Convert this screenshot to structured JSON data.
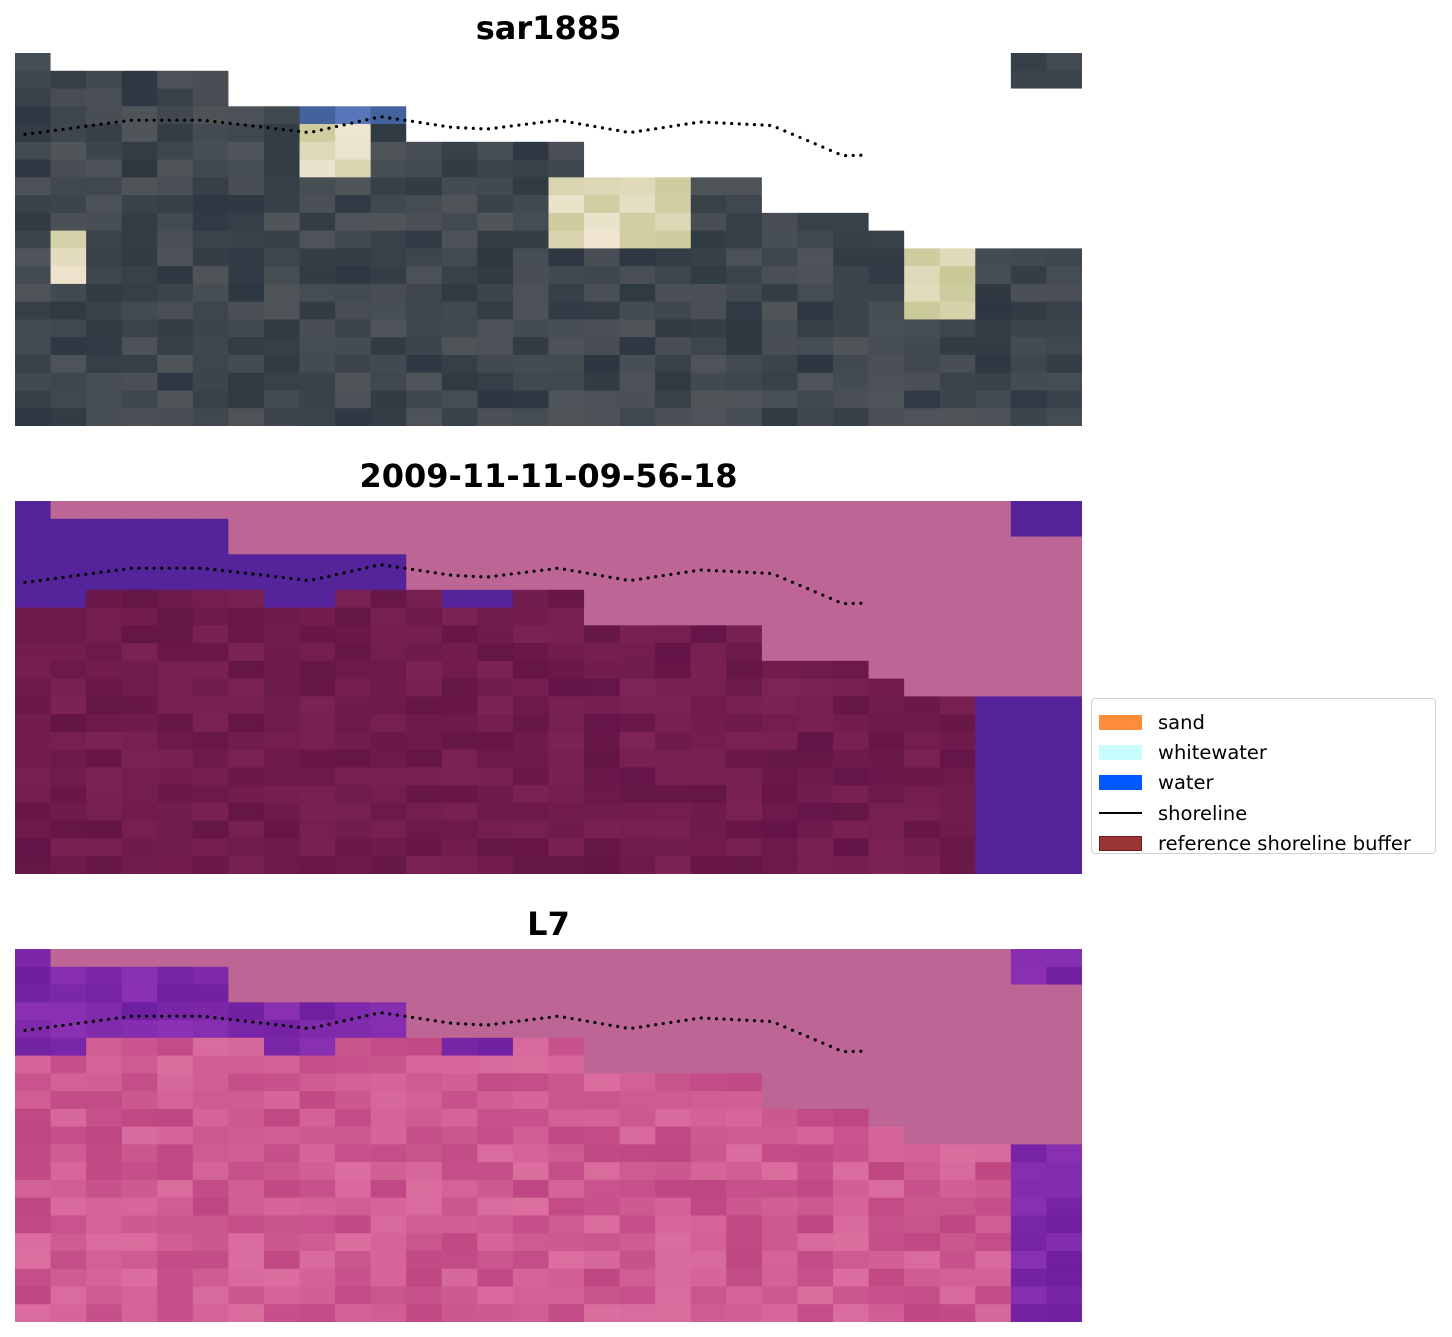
{
  "panels": [
    {
      "title": "sar1885",
      "style": "rgb"
    },
    {
      "title": "2009-11-11-09-56-18",
      "style": "classified"
    },
    {
      "title": "L7",
      "style": "index"
    }
  ],
  "legend": [
    {
      "label": "sand",
      "kind": "patch",
      "color": "#ff8c3a",
      "border": "#ff8c3a"
    },
    {
      "label": "whitewater",
      "kind": "patch",
      "color": "#c8fdfd",
      "border": "#c8fdfd"
    },
    {
      "label": "water",
      "kind": "patch",
      "color": "#0059ff",
      "border": "#0059ff"
    },
    {
      "label": "shoreline",
      "kind": "line",
      "color": "#000000"
    },
    {
      "label": "reference shoreline buffer",
      "kind": "patch",
      "color": "#9b3535",
      "border": "#6e1b1b"
    }
  ],
  "colors": {
    "no_data": "#bd6696",
    "shoreline_dots": "#000000"
  },
  "grid": {
    "cols": 30,
    "rows": 21
  }
}
